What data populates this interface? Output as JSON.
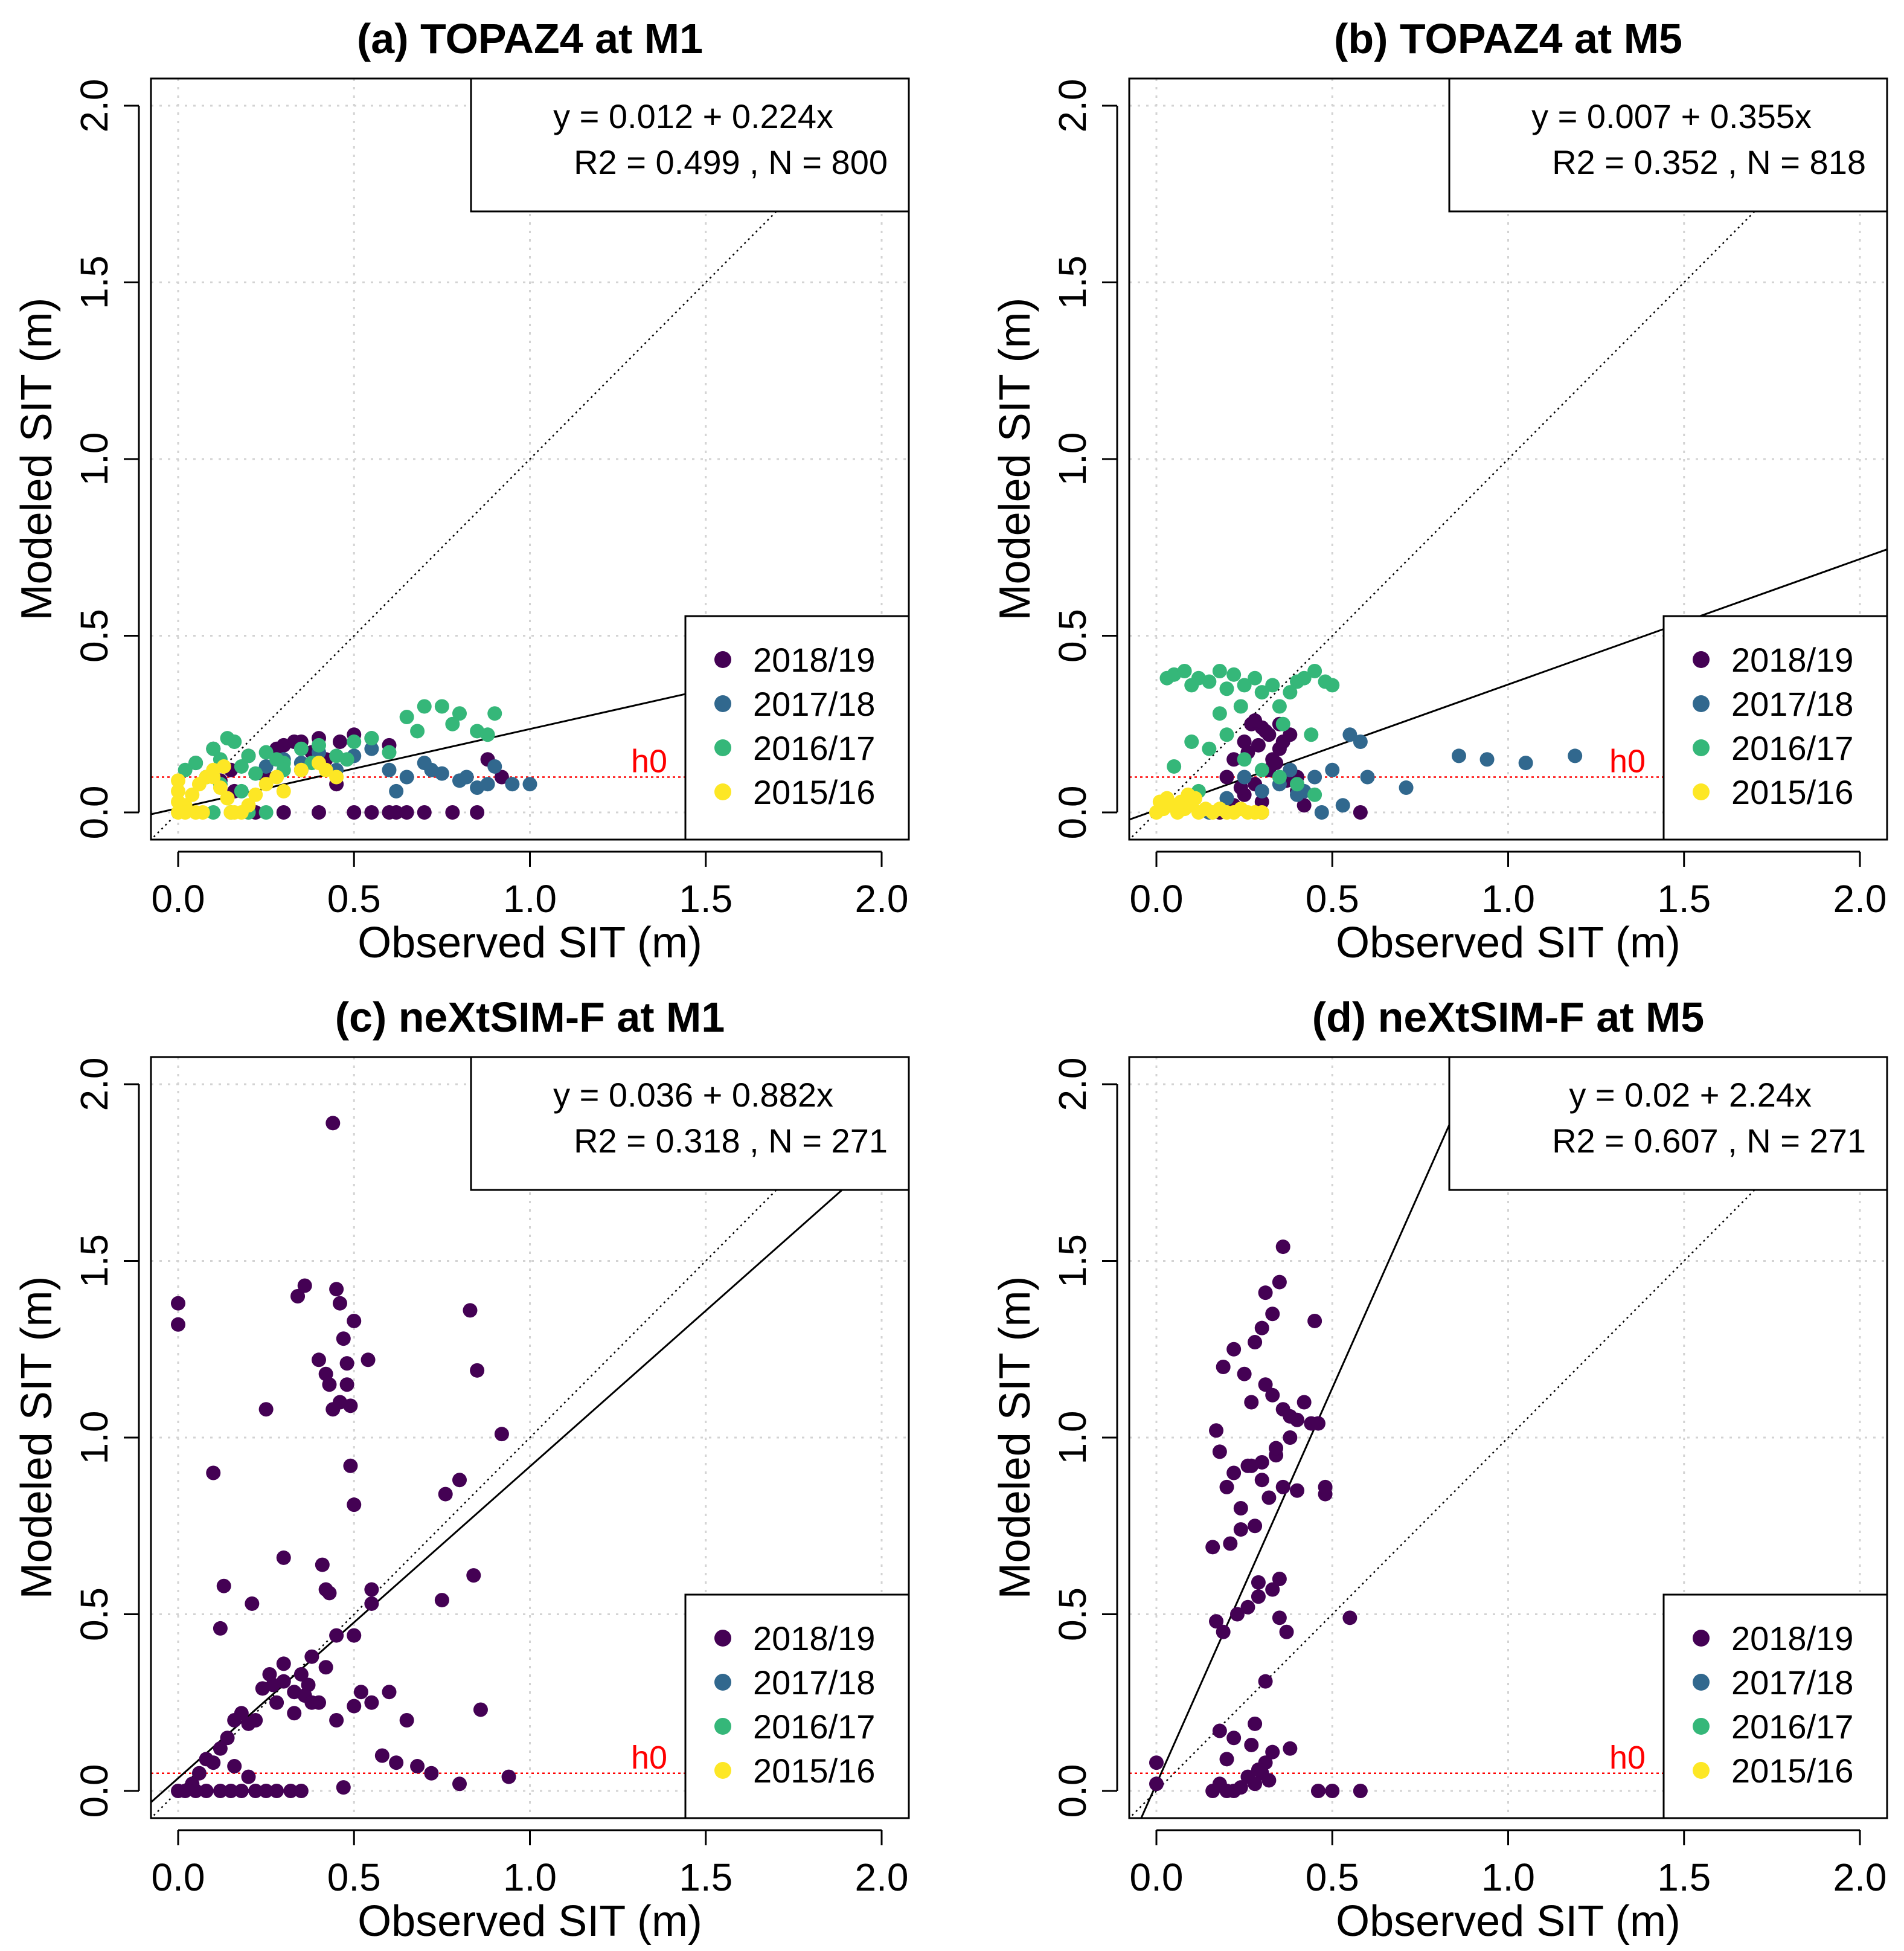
{
  "chart_data": [
    {
      "type": "scatter",
      "title": "(a) TOPAZ4 at M1",
      "xlabel": "Observed SIT (m)",
      "ylabel": "Modeled SIT (m)",
      "xlim": [
        0,
        2
      ],
      "ylim": [
        0,
        2
      ],
      "xticks": [
        "0.0",
        "0.5",
        "1.0",
        "1.5",
        "2.0"
      ],
      "yticks": [
        "0.0",
        "0.5",
        "1.0",
        "1.5",
        "2.0"
      ],
      "grid": true,
      "equation": "y = 0.012 + 0.224x",
      "stats": "R2 = 0.499 , N =  800",
      "fit": {
        "intercept": 0.012,
        "slope": 0.224
      },
      "h0": 0.1,
      "h0_label": "h0",
      "legend_position": "bottom-right",
      "legend": [
        "2018/19",
        "2017/18",
        "2016/17",
        "2015/16"
      ],
      "series": [
        {
          "name": "2018/19",
          "x": [
            0.05,
            0.1,
            0.15,
            0.2,
            0.25,
            0.3,
            0.35,
            0.38,
            0.42,
            0.46,
            0.5,
            0.55,
            0.6,
            0.3,
            0.22,
            0.4,
            0.62,
            0.7,
            0.78,
            0.85,
            0.88,
            0.92,
            0.35,
            0.45,
            0.5,
            0.55,
            0.6,
            0.65,
            0.28,
            0.33,
            0.4,
            0.16,
            0.12
          ],
          "y": [
            0.14,
            0.18,
            0.12,
            0.16,
            0.1,
            0.19,
            0.2,
            0.17,
            0.15,
            0.2,
            0.22,
            0.21,
            0.19,
            0.0,
            0.0,
            0.0,
            0.0,
            0.0,
            0.0,
            0.0,
            0.15,
            0.1,
            0.12,
            0.08,
            0.0,
            0.0,
            0.0,
            0.0,
            0.18,
            0.2,
            0.21,
            0.06,
            0.09
          ]
        },
        {
          "name": "2017/18",
          "x": [
            0.3,
            0.4,
            0.5,
            0.6,
            0.65,
            0.7,
            0.75,
            0.8,
            0.85,
            0.9,
            0.95,
            1.0,
            0.55,
            0.45,
            0.35,
            0.25,
            0.62,
            0.82,
            0.88,
            0.72
          ],
          "y": [
            0.15,
            0.17,
            0.16,
            0.12,
            0.1,
            0.14,
            0.11,
            0.09,
            0.07,
            0.13,
            0.08,
            0.08,
            0.18,
            0.12,
            0.14,
            0.13,
            0.06,
            0.1,
            0.08,
            0.12
          ]
        },
        {
          "name": "2016/17",
          "x": [
            0.02,
            0.05,
            0.08,
            0.1,
            0.12,
            0.14,
            0.16,
            0.18,
            0.2,
            0.22,
            0.25,
            0.28,
            0.3,
            0.35,
            0.4,
            0.45,
            0.5,
            0.55,
            0.6,
            0.65,
            0.7,
            0.75,
            0.8,
            0.85,
            0.9,
            0.88,
            0.78,
            0.68,
            0.1,
            0.15,
            0.2,
            0.25,
            0.18,
            0.12,
            0.08,
            0.3,
            0.38,
            0.48
          ],
          "y": [
            0.12,
            0.14,
            0.1,
            0.18,
            0.15,
            0.21,
            0.2,
            0.13,
            0.16,
            0.11,
            0.17,
            0.15,
            0.14,
            0.18,
            0.19,
            0.16,
            0.2,
            0.21,
            0.17,
            0.27,
            0.3,
            0.3,
            0.28,
            0.23,
            0.28,
            0.22,
            0.25,
            0.23,
            0.0,
            0.0,
            0.0,
            0.0,
            0.06,
            0.08,
            0.1,
            0.12,
            0.14,
            0.15
          ]
        },
        {
          "name": "2015/16",
          "x": [
            0.0,
            0.0,
            0.0,
            0.0,
            0.02,
            0.04,
            0.06,
            0.08,
            0.1,
            0.12,
            0.14,
            0.16,
            0.18,
            0.2,
            0.22,
            0.25,
            0.28,
            0.3,
            0.35,
            0.4,
            0.02,
            0.05,
            0.07,
            0.1,
            0.13,
            0.15,
            0.45,
            0.42
          ],
          "y": [
            0.0,
            0.03,
            0.06,
            0.09,
            0.02,
            0.05,
            0.08,
            0.1,
            0.12,
            0.07,
            0.04,
            0.0,
            0.0,
            0.02,
            0.05,
            0.08,
            0.1,
            0.06,
            0.12,
            0.14,
            0.0,
            0.0,
            0.0,
            0.1,
            0.13,
            0.0,
            0.1,
            0.12
          ]
        }
      ]
    },
    {
      "type": "scatter",
      "title": "(b) TOPAZ4 at M5",
      "xlabel": "Observed SIT (m)",
      "ylabel": "Modeled SIT (m)",
      "xlim": [
        0,
        2
      ],
      "ylim": [
        0,
        2
      ],
      "xticks": [
        "0.0",
        "0.5",
        "1.0",
        "1.5",
        "2.0"
      ],
      "yticks": [
        "0.0",
        "0.5",
        "1.0",
        "1.5",
        "2.0"
      ],
      "grid": true,
      "equation": "y = 0.007 + 0.355x",
      "stats": "R2 = 0.352 , N =  818",
      "fit": {
        "intercept": 0.007,
        "slope": 0.355
      },
      "h0": 0.1,
      "h0_label": "h0",
      "legend_position": "bottom-right",
      "legend": [
        "2018/19",
        "2017/18",
        "2016/17",
        "2015/16"
      ],
      "series": [
        {
          "name": "2018/19",
          "x": [
            0.2,
            0.22,
            0.25,
            0.27,
            0.3,
            0.32,
            0.35,
            0.38,
            0.4,
            0.25,
            0.28,
            0.3,
            0.33,
            0.36,
            0.38,
            0.4,
            0.42,
            0.18,
            0.22,
            0.35,
            0.28,
            0.32,
            0.3,
            0.26,
            0.58,
            0.24,
            0.34,
            0.37,
            0.29,
            0.31
          ],
          "y": [
            0.1,
            0.15,
            0.2,
            0.25,
            0.24,
            0.22,
            0.18,
            0.12,
            0.1,
            0.05,
            0.08,
            0.03,
            0.15,
            0.2,
            0.22,
            0.06,
            0.02,
            0.0,
            0.02,
            0.25,
            0.26,
            0.12,
            0.0,
            0.17,
            0.0,
            0.07,
            0.14,
            0.09,
            0.19,
            0.23
          ]
        },
        {
          "name": "2017/18",
          "x": [
            0.86,
            0.94,
            1.05,
            1.19,
            0.55,
            0.58,
            0.6,
            0.71,
            0.45,
            0.5,
            0.4,
            0.35,
            0.3,
            0.25,
            0.2,
            0.15,
            0.53,
            0.47,
            0.42,
            0.38
          ],
          "y": [
            0.16,
            0.15,
            0.14,
            0.16,
            0.22,
            0.2,
            0.1,
            0.07,
            0.1,
            0.12,
            0.05,
            0.08,
            0.06,
            0.1,
            0.04,
            0.0,
            0.02,
            0.0,
            0.06,
            0.12
          ]
        },
        {
          "name": "2016/17",
          "x": [
            0.03,
            0.05,
            0.08,
            0.1,
            0.12,
            0.15,
            0.18,
            0.2,
            0.22,
            0.25,
            0.28,
            0.3,
            0.33,
            0.35,
            0.38,
            0.4,
            0.42,
            0.45,
            0.48,
            0.5,
            0.1,
            0.15,
            0.2,
            0.25,
            0.3,
            0.35,
            0.4,
            0.45,
            0.05,
            0.12,
            0.18,
            0.24,
            0.36,
            0.44
          ],
          "y": [
            0.38,
            0.39,
            0.4,
            0.36,
            0.38,
            0.37,
            0.4,
            0.35,
            0.39,
            0.36,
            0.38,
            0.34,
            0.36,
            0.3,
            0.34,
            0.37,
            0.38,
            0.4,
            0.37,
            0.36,
            0.2,
            0.18,
            0.22,
            0.15,
            0.12,
            0.1,
            0.08,
            0.05,
            0.13,
            0.06,
            0.28,
            0.3,
            0.25,
            0.22
          ]
        },
        {
          "name": "2015/16",
          "x": [
            0.0,
            0.02,
            0.04,
            0.06,
            0.08,
            0.1,
            0.12,
            0.14,
            0.16,
            0.18,
            0.2,
            0.22,
            0.24,
            0.26,
            0.28,
            0.3,
            0.01,
            0.03,
            0.05,
            0.07,
            0.09,
            0.11
          ],
          "y": [
            0.0,
            0.01,
            0.02,
            0.0,
            0.01,
            0.02,
            0.0,
            0.01,
            0.0,
            0.01,
            0.0,
            0.0,
            0.01,
            0.0,
            0.0,
            0.0,
            0.03,
            0.04,
            0.02,
            0.03,
            0.05,
            0.04
          ]
        }
      ]
    },
    {
      "type": "scatter",
      "title": "(c) neXtSIM-F at M1",
      "xlabel": "Observed SIT (m)",
      "ylabel": "Modeled SIT (m)",
      "xlim": [
        0,
        2
      ],
      "ylim": [
        0,
        2
      ],
      "xticks": [
        "0.0",
        "0.5",
        "1.0",
        "1.5",
        "2.0"
      ],
      "yticks": [
        "0.0",
        "0.5",
        "1.0",
        "1.5",
        "2.0"
      ],
      "grid": true,
      "equation": "y = 0.036 + 0.882x",
      "stats": "R2 = 0.318 , N =  271",
      "fit": {
        "intercept": 0.036,
        "slope": 0.882
      },
      "h0": 0.05,
      "h0_label": "h0",
      "legend_position": "bottom-right",
      "legend": [
        "2018/19",
        "2017/18",
        "2016/17",
        "2015/16"
      ],
      "series": [
        {
          "name": "2018/19",
          "x": [
            0.0,
            0.0,
            0.44,
            0.36,
            0.34,
            0.45,
            0.46,
            0.47,
            0.5,
            0.54,
            0.4,
            0.43,
            0.46,
            0.48,
            0.44,
            0.42,
            0.48,
            0.49,
            0.49,
            0.25,
            0.1,
            0.83,
            0.85,
            0.92,
            0.76,
            0.8,
            0.75,
            0.84,
            0.3,
            0.41,
            0.43,
            0.42,
            0.5,
            0.55,
            0.13,
            0.12,
            0.21,
            0.45,
            0.42,
            0.38,
            0.37,
            0.33,
            0.3,
            0.28,
            0.26,
            0.24,
            0.22,
            0.2,
            0.18,
            0.16,
            0.14,
            0.12,
            0.1,
            0.08,
            0.06,
            0.04,
            0.02,
            0.0,
            0.32,
            0.35,
            0.28,
            0.25,
            0.22,
            0.18,
            0.15,
            0.12,
            0.08,
            0.05,
            0.36,
            0.4,
            0.45,
            0.5,
            0.52,
            0.55,
            0.58,
            0.62,
            0.65,
            0.68,
            0.72,
            0.8,
            0.86,
            0.94,
            0.3,
            0.35,
            0.38,
            0.33,
            0.27,
            0.2,
            0.16,
            0.55,
            0.5,
            0.6,
            0.47
          ],
          "y": [
            1.38,
            1.32,
            1.89,
            1.43,
            1.4,
            1.42,
            1.38,
            1.28,
            1.33,
            1.22,
            1.22,
            1.15,
            1.1,
            1.15,
            1.08,
            1.18,
            1.21,
            1.09,
            0.92,
            1.08,
            0.9,
            1.36,
            1.19,
            1.01,
            0.84,
            0.88,
            0.54,
            0.61,
            0.66,
            0.64,
            0.56,
            0.57,
            0.81,
            0.57,
            0.58,
            0.46,
            0.53,
            0.44,
            0.35,
            0.38,
            0.3,
            0.28,
            0.31,
            0.25,
            0.33,
            0.29,
            0.2,
            0.19,
            0.22,
            0.2,
            0.15,
            0.12,
            0.08,
            0.09,
            0.05,
            0.02,
            0.0,
            0.0,
            0.0,
            0.0,
            0.0,
            0.0,
            0.0,
            0.0,
            0.0,
            0.0,
            0.0,
            0.0,
            0.27,
            0.25,
            0.2,
            0.24,
            0.28,
            0.25,
            0.1,
            0.08,
            0.2,
            0.07,
            0.05,
            0.02,
            0.23,
            0.04,
            0.36,
            0.33,
            0.25,
            0.22,
            0.3,
            0.04,
            0.07,
            0.53,
            0.44,
            0.28,
            0.01
          ]
        }
      ]
    },
    {
      "type": "scatter",
      "title": "(d) neXtSIM-F at M5",
      "xlabel": "Observed SIT (m)",
      "ylabel": "Modeled SIT (m)",
      "xlim": [
        0,
        2
      ],
      "ylim": [
        0,
        2
      ],
      "xticks": [
        "0.0",
        "0.5",
        "1.0",
        "1.5",
        "2.0"
      ],
      "yticks": [
        "0.0",
        "0.5",
        "1.0",
        "1.5",
        "2.0"
      ],
      "grid": true,
      "equation": "y = 0.02 + 2.24x",
      "stats": "R2 = 0.607 , N =  271",
      "fit": {
        "intercept": 0.02,
        "slope": 2.24
      },
      "h0": 0.05,
      "h0_label": "h0",
      "legend_position": "bottom-right",
      "legend": [
        "2018/19",
        "2017/18",
        "2016/17",
        "2015/16"
      ],
      "series": [
        {
          "name": "2018/19",
          "x": [
            0.36,
            0.35,
            0.31,
            0.33,
            0.45,
            0.3,
            0.28,
            0.22,
            0.19,
            0.25,
            0.27,
            0.31,
            0.33,
            0.36,
            0.4,
            0.42,
            0.44,
            0.38,
            0.34,
            0.3,
            0.26,
            0.22,
            0.18,
            0.17,
            0.2,
            0.24,
            0.28,
            0.32,
            0.36,
            0.4,
            0.48,
            0.48,
            0.46,
            0.38,
            0.34,
            0.3,
            0.27,
            0.24,
            0.21,
            0.16,
            0.17,
            0.19,
            0.23,
            0.26,
            0.29,
            0.33,
            0.35,
            0.37,
            0.31,
            0.29,
            0.35,
            0.55,
            0.33,
            0.31,
            0.28,
            0.22,
            0.18,
            0.2,
            0.3,
            0.32,
            0.28,
            0.26,
            0.22,
            0.18,
            0.16,
            0.2,
            0.5,
            0.58,
            0.46,
            0.0,
            0.0,
            0.27,
            0.38,
            0.29,
            0.24
          ],
          "y": [
            1.54,
            1.44,
            1.41,
            1.35,
            1.33,
            1.31,
            1.27,
            1.25,
            1.2,
            1.18,
            1.1,
            1.15,
            1.12,
            1.08,
            1.05,
            1.1,
            1.04,
            1.0,
            0.95,
            0.93,
            0.92,
            0.9,
            0.96,
            1.02,
            0.86,
            0.8,
            0.75,
            0.83,
            0.86,
            0.85,
            0.84,
            0.86,
            1.04,
            1.06,
            0.97,
            0.88,
            0.92,
            0.74,
            0.7,
            0.69,
            0.48,
            0.45,
            0.5,
            0.52,
            0.59,
            0.57,
            0.6,
            0.45,
            0.31,
            0.55,
            0.49,
            0.49,
            0.11,
            0.08,
            0.19,
            0.15,
            0.17,
            0.09,
            0.05,
            0.03,
            0.02,
            0.04,
            0.0,
            0.02,
            0.0,
            0.0,
            0.0,
            0.0,
            0.0,
            0.08,
            0.02,
            0.13,
            0.12,
            0.06,
            0.01
          ]
        }
      ]
    }
  ],
  "colors": {
    "2018/19": "#440154",
    "2017/18": "#31688e",
    "2016/17": "#35b779",
    "2015/16": "#fde725",
    "h0_line": "#ff0000"
  }
}
